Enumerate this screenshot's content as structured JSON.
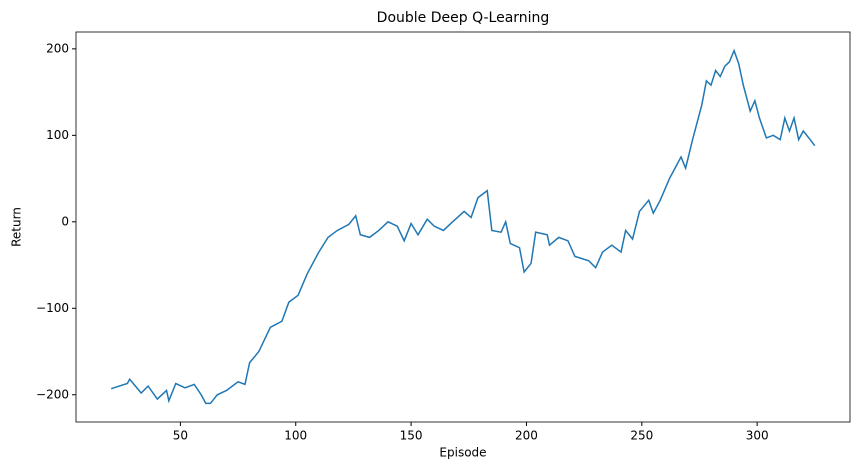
{
  "chart_data": {
    "type": "line",
    "title": "Double Deep Q-Learning",
    "x_label": "Episode",
    "y_label": "Return",
    "x": [
      20,
      27,
      28,
      33,
      36,
      40,
      44,
      45,
      48,
      52,
      56,
      59,
      61,
      63,
      66,
      70,
      75,
      78,
      80,
      84,
      89,
      94,
      97,
      101,
      105,
      110,
      114,
      118,
      123,
      126,
      128,
      132,
      136,
      140,
      144,
      147,
      150,
      153,
      157,
      160,
      164,
      168,
      173,
      176,
      179,
      183,
      185,
      189,
      191,
      193,
      197,
      199,
      202,
      204,
      209,
      210,
      214,
      218,
      221,
      227,
      230,
      233,
      237,
      241,
      243,
      246,
      249,
      253,
      255,
      258,
      262,
      265,
      267,
      269,
      272,
      276,
      278,
      280,
      282,
      284,
      286,
      288,
      290,
      292,
      294,
      297,
      299,
      301,
      304,
      307,
      310,
      312,
      314,
      316,
      318,
      320,
      323,
      325
    ],
    "series": [
      {
        "name": "Return",
        "color": "#1f77b4",
        "values": [
          -193,
          -187,
          -182,
          -198,
          -190,
          -205,
          -195,
          -207,
          -187,
          -192,
          -188,
          -200,
          -210,
          -210,
          -200,
          -195,
          -185,
          -188,
          -163,
          -150,
          -122,
          -115,
          -93,
          -85,
          -60,
          -35,
          -18,
          -10,
          -3,
          7,
          -15,
          -18,
          -10,
          0,
          -5,
          -22,
          -2,
          -15,
          3,
          -5,
          -10,
          0,
          12,
          5,
          28,
          36,
          -10,
          -12,
          0,
          -25,
          -30,
          -58,
          -48,
          -12,
          -15,
          -27,
          -18,
          -22,
          -40,
          -45,
          -53,
          -35,
          -27,
          -35,
          -10,
          -20,
          12,
          25,
          10,
          25,
          50,
          65,
          75,
          62,
          95,
          135,
          163,
          158,
          175,
          168,
          180,
          185,
          198,
          183,
          158,
          128,
          140,
          120,
          97,
          100,
          95,
          120,
          105,
          120,
          95,
          105,
          95,
          88
        ]
      }
    ],
    "xlim": [
      4.75,
      340.25
    ],
    "xticks": [
      50,
      100,
      150,
      200,
      250,
      300
    ],
    "ylim": [
      -231.5,
      219.5
    ],
    "yticks": [
      {
        "value": -200,
        "label": "−200"
      },
      {
        "value": -100,
        "label": "−100"
      },
      0,
      100,
      200
    ]
  }
}
